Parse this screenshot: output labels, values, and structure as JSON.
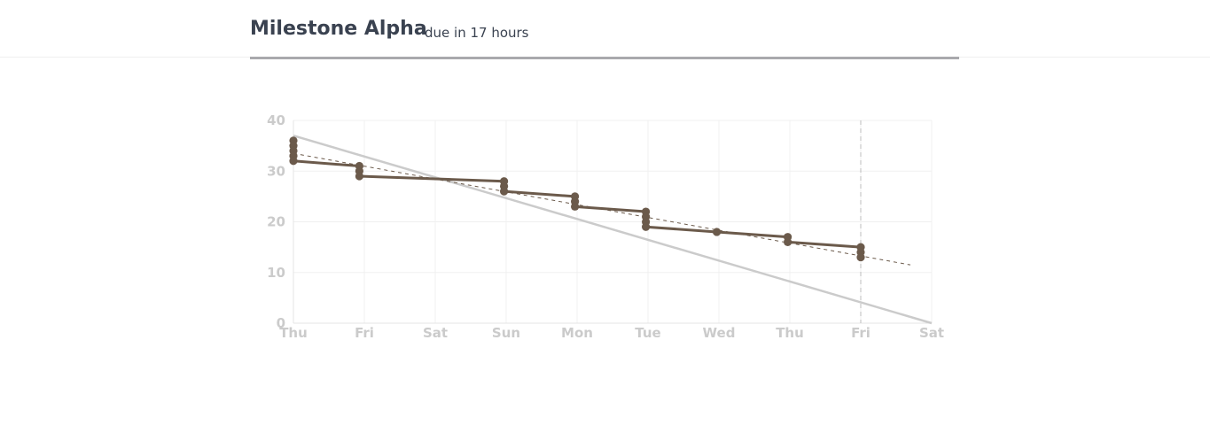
{
  "header": {
    "title": "Milestone Alpha",
    "due": "due in 17 hours"
  },
  "chart_data": {
    "type": "line",
    "title": "",
    "xlabel": "",
    "ylabel": "",
    "x_tick_labels": [
      "Thu",
      "Fri",
      "Sat",
      "Sun",
      "Mon",
      "Tue",
      "Wed",
      "Thu",
      "Fri",
      "Sat"
    ],
    "y_ticks": [
      0,
      10,
      20,
      30,
      40
    ],
    "xlim": [
      0,
      9
    ],
    "ylim": [
      0,
      40
    ],
    "grid": true,
    "current_day_marker": 8,
    "ideal_line": {
      "x": [
        0,
        9
      ],
      "y": [
        37,
        0
      ]
    },
    "trend_line": {
      "x": [
        0,
        8.7
      ],
      "y": [
        33.5,
        11.5
      ]
    },
    "points": [
      {
        "x": 0,
        "y": 36
      },
      {
        "x": 0,
        "y": 35
      },
      {
        "x": 0,
        "y": 34
      },
      {
        "x": 0,
        "y": 33
      },
      {
        "x": 0,
        "y": 32
      },
      {
        "x": 0.93,
        "y": 31
      },
      {
        "x": 0.93,
        "y": 30
      },
      {
        "x": 0.93,
        "y": 29
      },
      {
        "x": 2.97,
        "y": 28
      },
      {
        "x": 2.97,
        "y": 27
      },
      {
        "x": 2.97,
        "y": 26
      },
      {
        "x": 3.97,
        "y": 25
      },
      {
        "x": 3.97,
        "y": 24
      },
      {
        "x": 3.97,
        "y": 23
      },
      {
        "x": 4.97,
        "y": 22
      },
      {
        "x": 4.97,
        "y": 21
      },
      {
        "x": 4.97,
        "y": 20
      },
      {
        "x": 4.97,
        "y": 19
      },
      {
        "x": 5.97,
        "y": 18
      },
      {
        "x": 6.97,
        "y": 17
      },
      {
        "x": 6.97,
        "y": 16
      },
      {
        "x": 8,
        "y": 15
      },
      {
        "x": 8,
        "y": 14
      },
      {
        "x": 8,
        "y": 13
      }
    ],
    "remaining_line": {
      "x": [
        0,
        0.93,
        0.93,
        2.97,
        2.97,
        3.97,
        3.97,
        4.97,
        4.97,
        5.97,
        6.97,
        6.97,
        8
      ],
      "y": [
        32,
        31,
        29,
        28,
        26,
        25,
        23,
        22,
        19,
        18,
        17,
        16,
        15
      ]
    },
    "colors": {
      "actual": "#6b5a4b",
      "ideal": "#cbcbcb",
      "grid": "#f0f0f0",
      "axis": "#e4e4e4",
      "trend": "#6b5a4b"
    }
  }
}
